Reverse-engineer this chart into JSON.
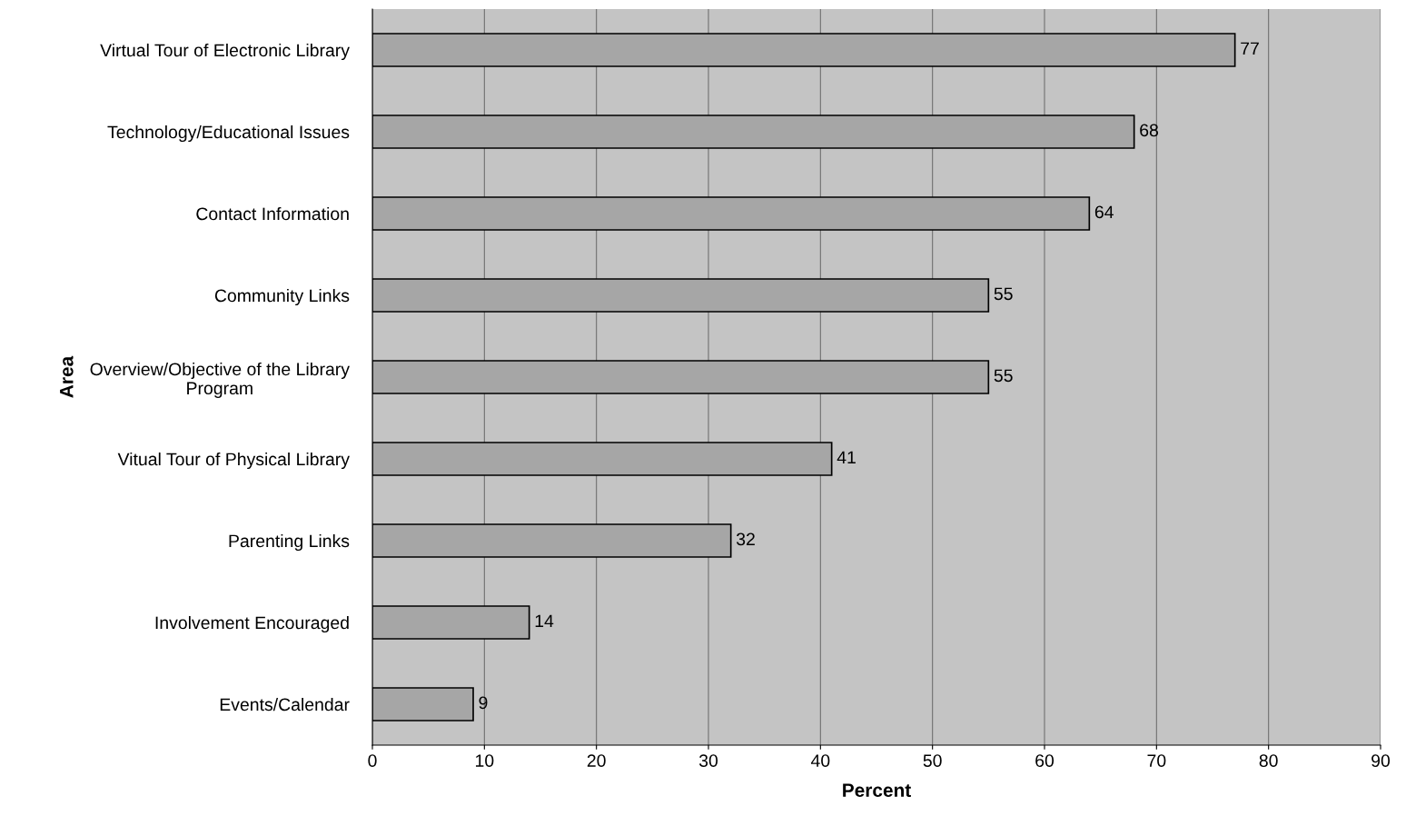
{
  "chart_data": {
    "type": "bar",
    "orientation": "horizontal",
    "xlabel": "Percent",
    "ylabel": "Area",
    "categories": [
      "Virtual Tour of Electronic Library",
      "Technology/Educational Issues",
      "Contact Information",
      "Community Links",
      "Overview/Objective of the Library\nProgram",
      "Vitual Tour of Physical Library",
      "Parenting Links",
      "Involvement Encouraged",
      "Events/Calendar"
    ],
    "values": [
      77,
      68,
      64,
      55,
      55,
      41,
      32,
      14,
      9
    ],
    "color": "#a6a6a6",
    "xlim": [
      0,
      90
    ],
    "xticks": [
      0,
      10,
      20,
      30,
      40,
      50,
      60,
      70,
      80,
      90
    ],
    "grid": "x",
    "data_labels": true
  }
}
